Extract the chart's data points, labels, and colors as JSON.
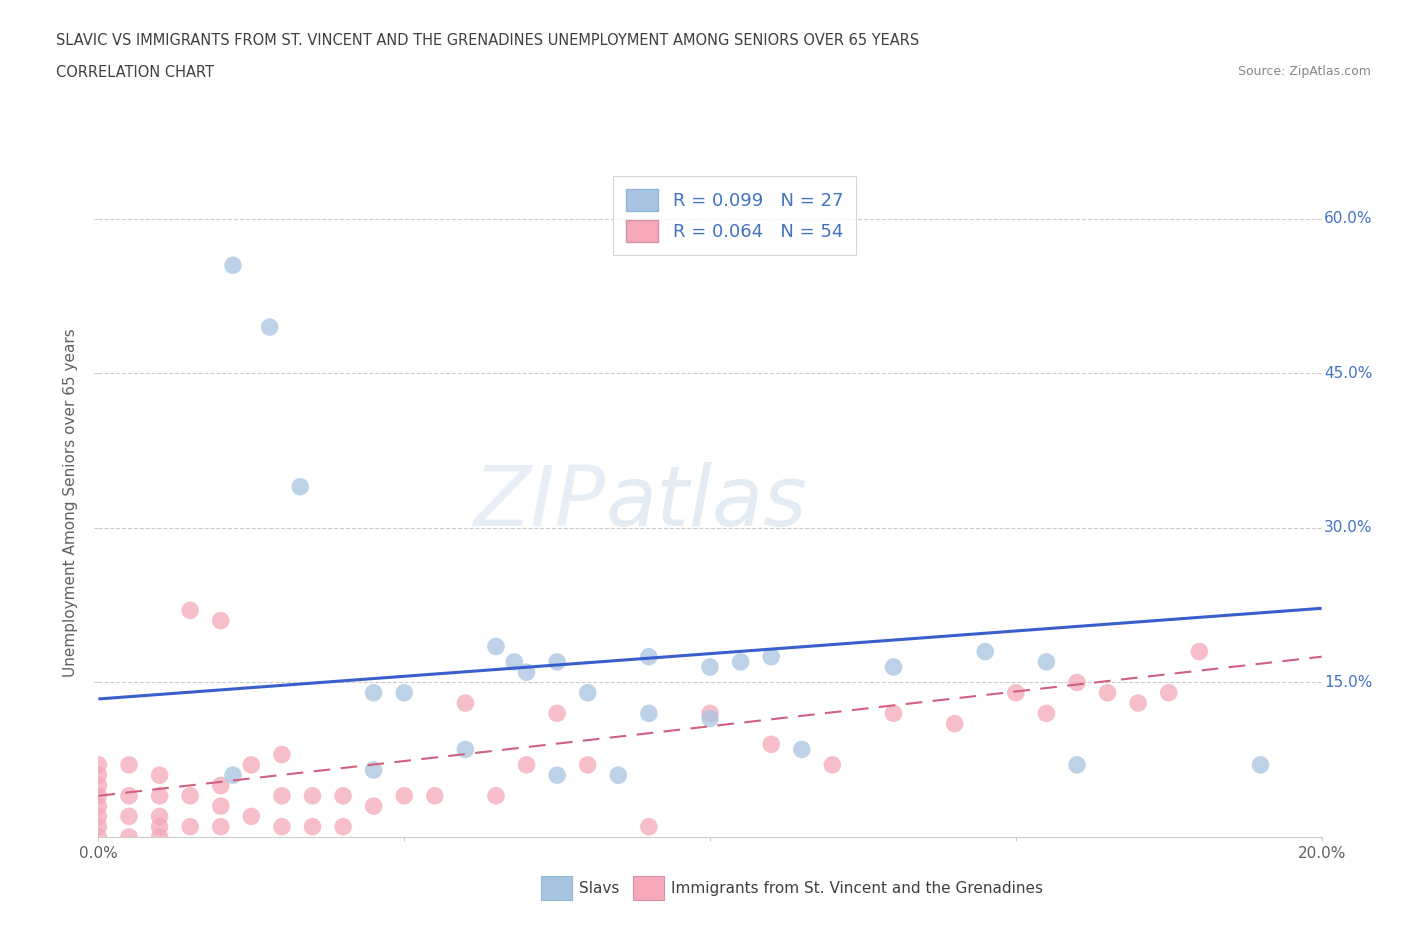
{
  "title_line1": "SLAVIC VS IMMIGRANTS FROM ST. VINCENT AND THE GRENADINES UNEMPLOYMENT AMONG SENIORS OVER 65 YEARS",
  "title_line2": "CORRELATION CHART",
  "source_text": "Source: ZipAtlas.com",
  "ylabel": "Unemployment Among Seniors over 65 years",
  "watermark_zip": "ZIP",
  "watermark_atlas": "atlas",
  "xlim": [
    0.0,
    0.2
  ],
  "ylim": [
    0.0,
    0.65
  ],
  "xticks": [
    0.0,
    0.05,
    0.1,
    0.15,
    0.2
  ],
  "xticklabels": [
    "0.0%",
    "",
    "",
    "",
    "20.0%"
  ],
  "yticks": [
    0.15,
    0.3,
    0.45,
    0.6
  ],
  "yticklabels": [
    "15.0%",
    "30.0%",
    "45.0%",
    "60.0%"
  ],
  "slavs_color": "#a8c4e0",
  "immigrants_color": "#f4a8b8",
  "trend_slavs_color": "#3a5fcd",
  "trend_immigrants_color": "#d06080",
  "R_slavs": 0.099,
  "N_slavs": 27,
  "R_immigrants": 0.064,
  "N_immigrants": 54,
  "legend_label_slavs": "Slavs",
  "legend_label_immigrants": "Immigrants from St. Vincent and the Grenadines",
  "slavs_x": [
    0.022,
    0.028,
    0.033,
    0.045,
    0.05,
    0.065,
    0.068,
    0.07,
    0.075,
    0.08,
    0.09,
    0.1,
    0.105,
    0.11,
    0.115,
    0.13,
    0.145,
    0.155,
    0.19,
    0.022,
    0.06,
    0.075,
    0.085,
    0.16,
    0.09,
    0.1,
    0.045
  ],
  "slavs_y": [
    0.555,
    0.495,
    0.34,
    0.14,
    0.14,
    0.185,
    0.17,
    0.16,
    0.17,
    0.14,
    0.175,
    0.165,
    0.17,
    0.175,
    0.085,
    0.165,
    0.18,
    0.17,
    0.07,
    0.06,
    0.085,
    0.06,
    0.06,
    0.07,
    0.12,
    0.115,
    0.065
  ],
  "immigrants_x": [
    0.0,
    0.0,
    0.0,
    0.0,
    0.0,
    0.0,
    0.0,
    0.0,
    0.005,
    0.005,
    0.005,
    0.005,
    0.01,
    0.01,
    0.01,
    0.01,
    0.01,
    0.015,
    0.015,
    0.015,
    0.02,
    0.02,
    0.02,
    0.02,
    0.025,
    0.025,
    0.03,
    0.03,
    0.03,
    0.035,
    0.035,
    0.04,
    0.04,
    0.045,
    0.05,
    0.055,
    0.06,
    0.065,
    0.07,
    0.075,
    0.08,
    0.09,
    0.1,
    0.11,
    0.12,
    0.13,
    0.14,
    0.15,
    0.155,
    0.16,
    0.165,
    0.17,
    0.175,
    0.18
  ],
  "immigrants_y": [
    0.0,
    0.01,
    0.02,
    0.03,
    0.04,
    0.05,
    0.06,
    0.07,
    0.0,
    0.02,
    0.04,
    0.07,
    0.0,
    0.01,
    0.02,
    0.04,
    0.06,
    0.01,
    0.04,
    0.22,
    0.01,
    0.03,
    0.05,
    0.21,
    0.02,
    0.07,
    0.01,
    0.04,
    0.08,
    0.01,
    0.04,
    0.01,
    0.04,
    0.03,
    0.04,
    0.04,
    0.13,
    0.04,
    0.07,
    0.12,
    0.07,
    0.01,
    0.12,
    0.09,
    0.07,
    0.12,
    0.11,
    0.14,
    0.12,
    0.15,
    0.14,
    0.13,
    0.14,
    0.18
  ],
  "trend_slavs_x0": 0.0,
  "trend_slavs_y0": 0.134,
  "trend_slavs_x1": 0.2,
  "trend_slavs_y1": 0.222,
  "trend_immigrants_x0": 0.0,
  "trend_immigrants_y0": 0.04,
  "trend_immigrants_x1": 0.2,
  "trend_immigrants_y1": 0.175,
  "background_color": "#ffffff",
  "grid_color": "#cccccc",
  "title_color": "#404040",
  "axis_label_color": "#606060",
  "tick_color": "#4472c4"
}
